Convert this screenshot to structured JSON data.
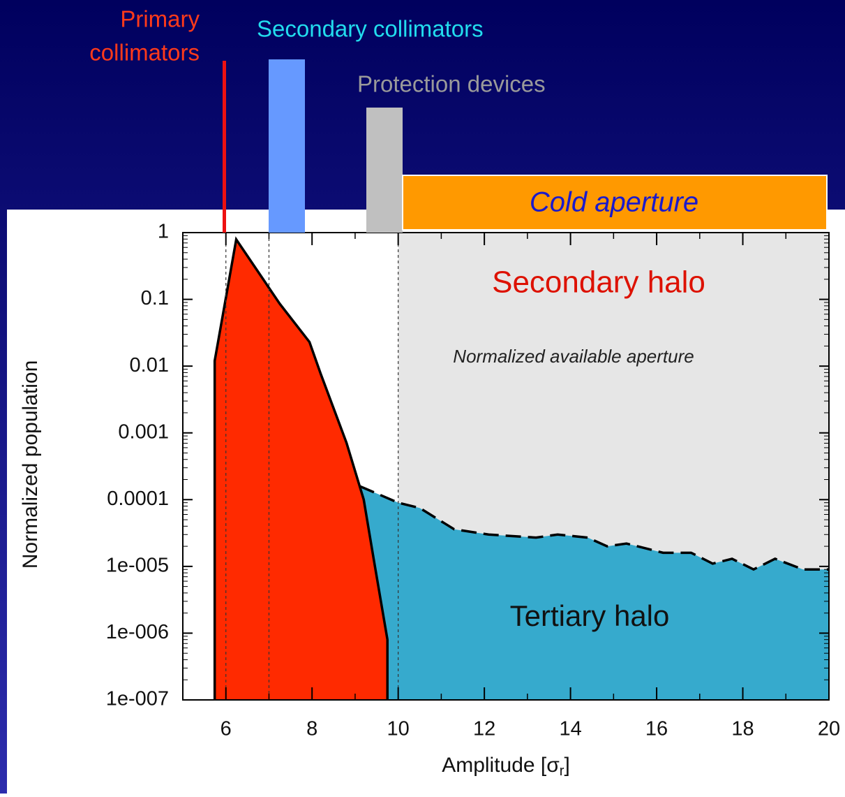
{
  "chart_data": {
    "type": "area",
    "y_label": "Normalized population",
    "x_label": "Amplitude [σ",
    "x_label_sub": "r",
    "x_label_end": "]",
    "primary_label": [
      "Primary",
      "collimators"
    ],
    "secondary_collimators_label": "Secondary collimators",
    "protection_label": "Protection devices",
    "cold_label": "Cold aperture",
    "aperture_label": "Normalized available aperture",
    "secondary_halo_label": "Secondary halo",
    "tertiary_halo_label": "Tertiary halo",
    "xlim": [
      5,
      20
    ],
    "xticks": [
      6,
      8,
      10,
      12,
      14,
      16,
      18,
      20
    ],
    "ylim": [
      1e-07,
      1
    ],
    "log_y": true,
    "yticks": [
      1,
      0.1,
      0.01,
      0.001,
      0.0001,
      {
        "value": 1e-05,
        "label": "1e-005"
      },
      {
        "value": 1e-06,
        "label": "1e-006"
      },
      {
        "value": 1e-07,
        "label": "1e-007"
      }
    ],
    "vlines": [
      6,
      7,
      10
    ],
    "shade": [
      10,
      20
    ],
    "series": [
      {
        "name": "Tertiary halo",
        "color": "#36aacd",
        "dashed": true,
        "x": [
          6.73,
          6.75,
          7.25,
          9.2,
          10,
          10.5,
          11.3,
          12.1,
          13.2,
          13.7,
          14.4,
          14.85,
          15.3,
          16.15,
          16.8,
          17.3,
          17.75,
          18.25,
          18.75,
          19.4,
          20
        ],
        "values": [
          1e-07,
          3e-06,
          0.0005,
          0.00015,
          9e-05,
          7.5e-05,
          3.6e-05,
          3e-05,
          2.7e-05,
          3e-05,
          2.7e-05,
          2e-05,
          2.2e-05,
          1.6e-05,
          1.6e-05,
          1.1e-05,
          1.3e-05,
          9e-06,
          1.3e-05,
          9e-06,
          9e-06
        ]
      },
      {
        "name": "Secondary halo",
        "color": "#ff2a00",
        "dashed": false,
        "x": [
          5.74,
          6.24,
          7.25,
          7.94,
          8.2,
          8.8,
          9.2,
          9.43,
          9.75
        ],
        "values": [
          0.012,
          0.79,
          0.086,
          0.023,
          0.0077,
          0.00071,
          0.0001,
          1.3e-05,
          8e-07
        ]
      }
    ]
  }
}
